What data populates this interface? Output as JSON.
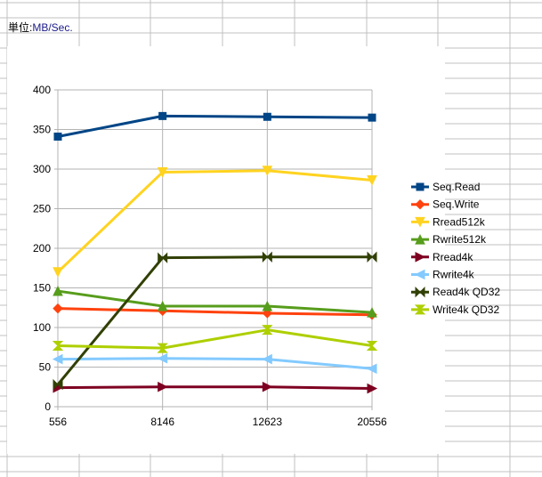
{
  "sheet": {
    "unit_label_prefix": "単位:",
    "unit_label_value": "MB/Sec."
  },
  "chart_data": {
    "type": "line",
    "title": "",
    "xlabel": "",
    "ylabel": "",
    "categories": [
      "556",
      "8146",
      "12623",
      "20556"
    ],
    "ylim": [
      0,
      400
    ],
    "yticks": [
      0,
      50,
      100,
      150,
      200,
      250,
      300,
      350,
      400
    ],
    "grid": true,
    "legend_position": "right",
    "series": [
      {
        "name": "Seq.Read",
        "color": "#004586",
        "marker": "square",
        "values": [
          341,
          367,
          366,
          365
        ]
      },
      {
        "name": "Seq.Write",
        "color": "#ff420e",
        "marker": "diamond",
        "values": [
          124,
          121,
          118,
          116
        ]
      },
      {
        "name": "Rread512k",
        "color": "#ffd320",
        "marker": "triangle-down",
        "values": [
          170,
          296,
          298,
          286
        ]
      },
      {
        "name": "Rwrite512k",
        "color": "#579d1c",
        "marker": "triangle-up",
        "values": [
          146,
          127,
          127,
          119
        ]
      },
      {
        "name": "Rread4k",
        "color": "#7e0021",
        "marker": "triangle-right",
        "values": [
          24,
          25,
          25,
          23
        ]
      },
      {
        "name": "Rwrite4k",
        "color": "#83caff",
        "marker": "triangle-left",
        "values": [
          60,
          61,
          60,
          48
        ]
      },
      {
        "name": "Read4k QD32",
        "color": "#314004",
        "marker": "bowtie",
        "values": [
          28,
          188,
          189,
          189
        ]
      },
      {
        "name": "Write4k QD32",
        "color": "#aecf00",
        "marker": "hourglass",
        "values": [
          77,
          74,
          97,
          77
        ]
      }
    ]
  }
}
